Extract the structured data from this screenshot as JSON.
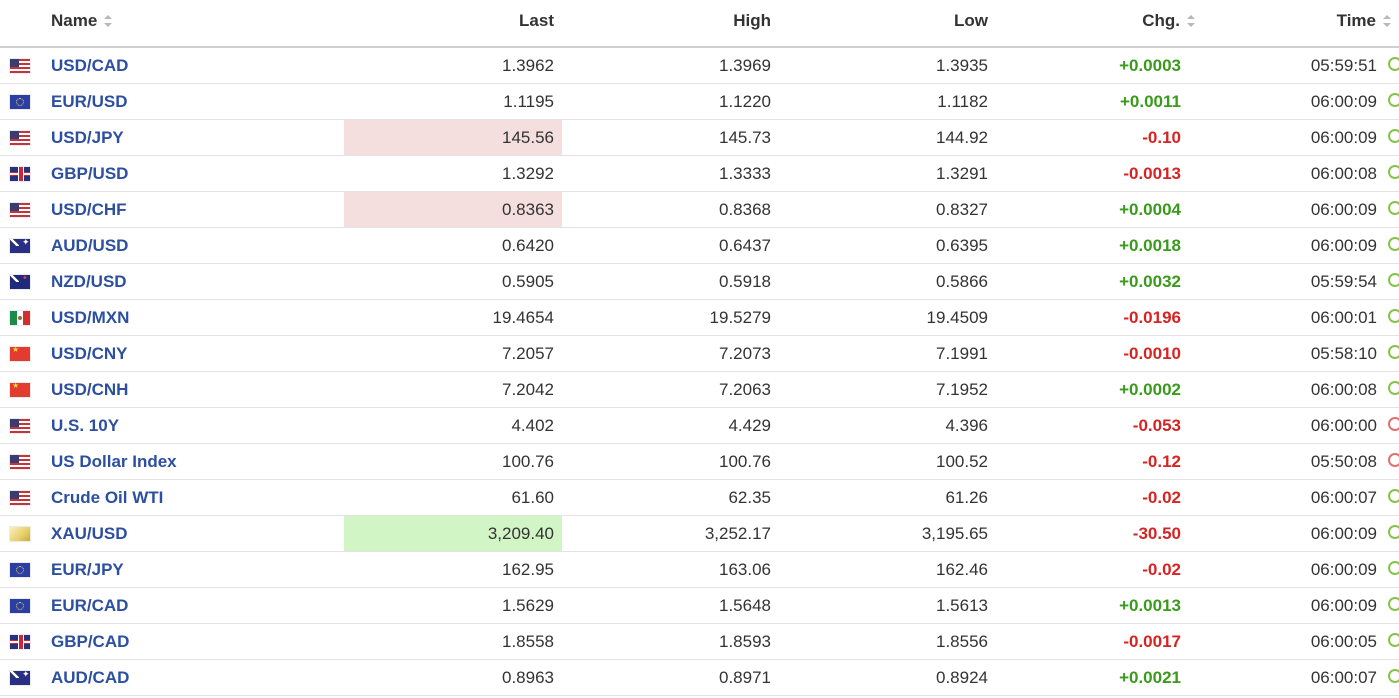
{
  "columns": {
    "name": "Name",
    "last": "Last",
    "high": "High",
    "low": "Low",
    "chg": "Chg.",
    "time": "Time"
  },
  "rows": [
    {
      "flag": "us",
      "name": "USD/CAD",
      "last": "1.3962",
      "high": "1.3969",
      "low": "1.3935",
      "chg": "+0.0003",
      "dir": "pos",
      "time": "05:59:51",
      "hl": "",
      "status": "green"
    },
    {
      "flag": "eu",
      "name": "EUR/USD",
      "last": "1.1195",
      "high": "1.1220",
      "low": "1.1182",
      "chg": "+0.0011",
      "dir": "pos",
      "time": "06:00:09",
      "hl": "",
      "status": "green"
    },
    {
      "flag": "us",
      "name": "USD/JPY",
      "last": "145.56",
      "high": "145.73",
      "low": "144.92",
      "chg": "-0.10",
      "dir": "neg",
      "time": "06:00:09",
      "hl": "red",
      "status": "green"
    },
    {
      "flag": "gb",
      "name": "GBP/USD",
      "last": "1.3292",
      "high": "1.3333",
      "low": "1.3291",
      "chg": "-0.0013",
      "dir": "neg",
      "time": "06:00:08",
      "hl": "",
      "status": "green"
    },
    {
      "flag": "us",
      "name": "USD/CHF",
      "last": "0.8363",
      "high": "0.8368",
      "low": "0.8327",
      "chg": "+0.0004",
      "dir": "pos",
      "time": "06:00:09",
      "hl": "red",
      "status": "green"
    },
    {
      "flag": "au",
      "name": "AUD/USD",
      "last": "0.6420",
      "high": "0.6437",
      "low": "0.6395",
      "chg": "+0.0018",
      "dir": "pos",
      "time": "06:00:09",
      "hl": "",
      "status": "green"
    },
    {
      "flag": "nz",
      "name": "NZD/USD",
      "last": "0.5905",
      "high": "0.5918",
      "low": "0.5866",
      "chg": "+0.0032",
      "dir": "pos",
      "time": "05:59:54",
      "hl": "",
      "status": "green"
    },
    {
      "flag": "mx",
      "name": "USD/MXN",
      "last": "19.4654",
      "high": "19.5279",
      "low": "19.4509",
      "chg": "-0.0196",
      "dir": "neg",
      "time": "06:00:01",
      "hl": "",
      "status": "green"
    },
    {
      "flag": "cn",
      "name": "USD/CNY",
      "last": "7.2057",
      "high": "7.2073",
      "low": "7.1991",
      "chg": "-0.0010",
      "dir": "neg",
      "time": "05:58:10",
      "hl": "",
      "status": "green"
    },
    {
      "flag": "cn",
      "name": "USD/CNH",
      "last": "7.2042",
      "high": "7.2063",
      "low": "7.1952",
      "chg": "+0.0002",
      "dir": "pos",
      "time": "06:00:08",
      "hl": "",
      "status": "green"
    },
    {
      "flag": "us",
      "name": "U.S. 10Y",
      "last": "4.402",
      "high": "4.429",
      "low": "4.396",
      "chg": "-0.053",
      "dir": "neg",
      "time": "06:00:00",
      "hl": "",
      "status": "red"
    },
    {
      "flag": "us",
      "name": "US Dollar Index",
      "last": "100.76",
      "high": "100.76",
      "low": "100.52",
      "chg": "-0.12",
      "dir": "neg",
      "time": "05:50:08",
      "hl": "",
      "status": "red"
    },
    {
      "flag": "us",
      "name": "Crude Oil WTI",
      "last": "61.60",
      "high": "62.35",
      "low": "61.26",
      "chg": "-0.02",
      "dir": "neg",
      "time": "06:00:07",
      "hl": "",
      "status": "green"
    },
    {
      "flag": "gold",
      "name": "XAU/USD",
      "last": "3,209.40",
      "high": "3,252.17",
      "low": "3,195.65",
      "chg": "-30.50",
      "dir": "neg",
      "time": "06:00:09",
      "hl": "green",
      "status": "green"
    },
    {
      "flag": "eu",
      "name": "EUR/JPY",
      "last": "162.95",
      "high": "163.06",
      "low": "162.46",
      "chg": "-0.02",
      "dir": "neg",
      "time": "06:00:09",
      "hl": "",
      "status": "green"
    },
    {
      "flag": "eu",
      "name": "EUR/CAD",
      "last": "1.5629",
      "high": "1.5648",
      "low": "1.5613",
      "chg": "+0.0013",
      "dir": "pos",
      "time": "06:00:09",
      "hl": "",
      "status": "green"
    },
    {
      "flag": "gb",
      "name": "GBP/CAD",
      "last": "1.8558",
      "high": "1.8593",
      "low": "1.8556",
      "chg": "-0.0017",
      "dir": "neg",
      "time": "06:00:05",
      "hl": "",
      "status": "green"
    },
    {
      "flag": "au",
      "name": "AUD/CAD",
      "last": "0.8963",
      "high": "0.8971",
      "low": "0.8924",
      "chg": "+0.0021",
      "dir": "pos",
      "time": "06:00:07",
      "hl": "",
      "status": "green"
    }
  ],
  "colors": {
    "positive": "#3a9a1b",
    "negative": "#d62424",
    "name_link": "#2c4fa0",
    "highlight_down": "#f4dede",
    "highlight_up": "#d2f5c6"
  }
}
